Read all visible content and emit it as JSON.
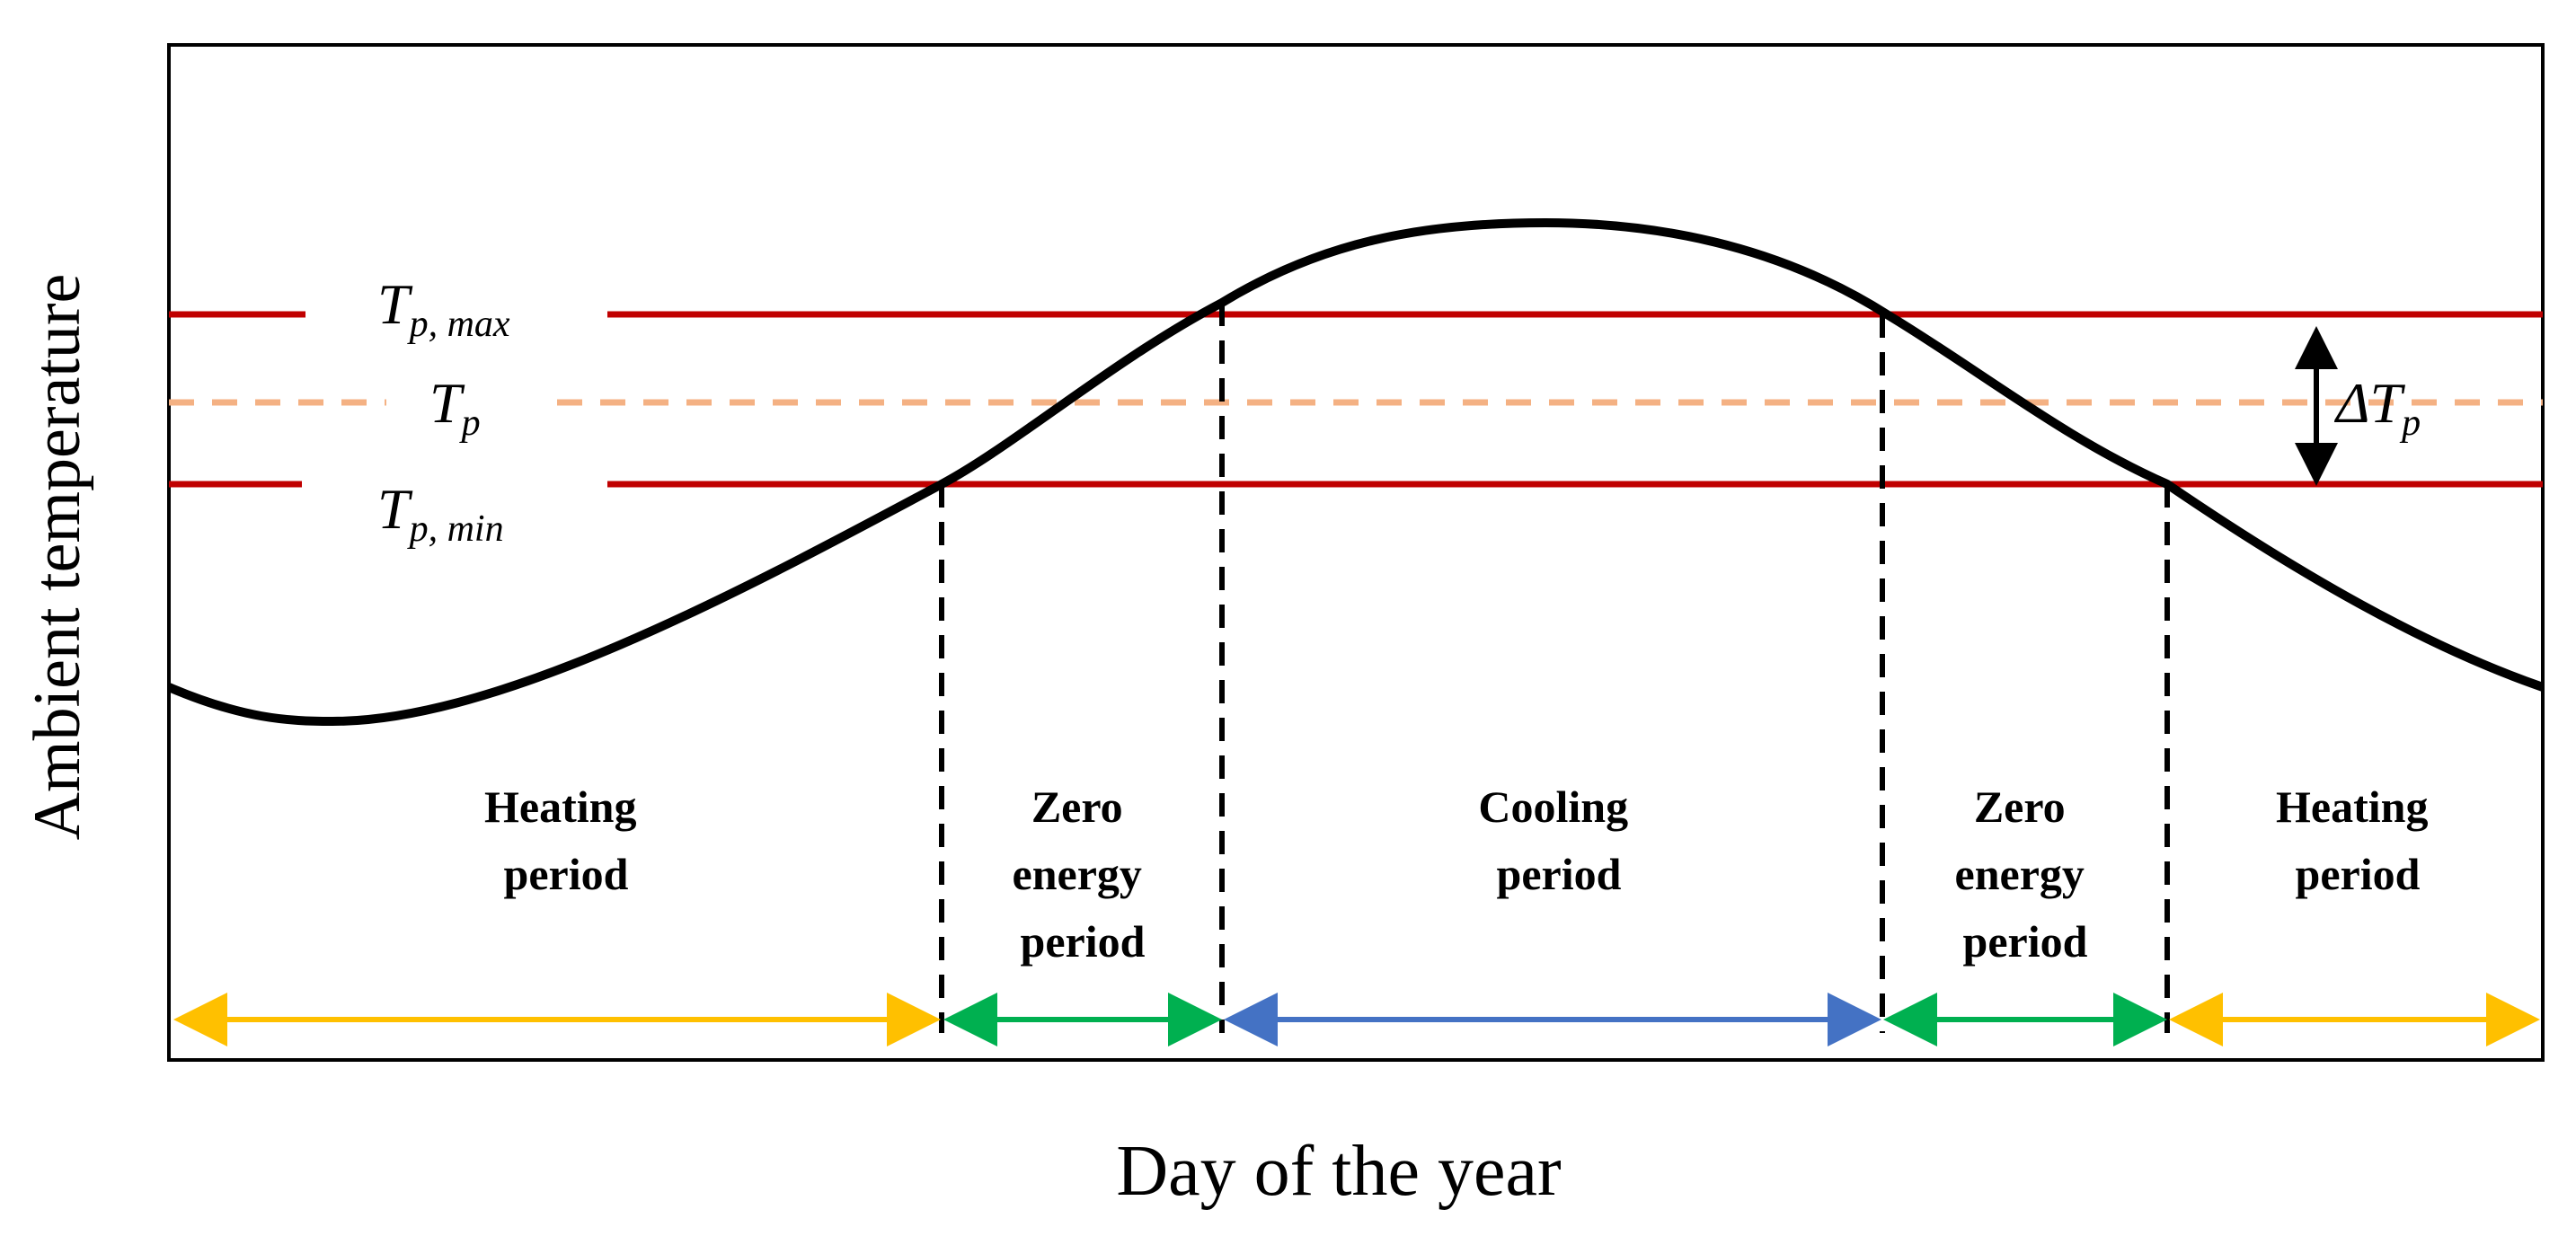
{
  "axes": {
    "y_label": "Ambient temperature",
    "x_label": "Day of the year"
  },
  "thresholds": {
    "max": {
      "symbol": "T",
      "sub": "p, max",
      "color": "#c00000"
    },
    "mean": {
      "symbol": "T",
      "sub": "p",
      "color": "#f4b183"
    },
    "min": {
      "symbol": "T",
      "sub": "p, min",
      "color": "#c00000"
    },
    "delta": {
      "symbol": "ΔT",
      "sub": "p"
    }
  },
  "periods": [
    {
      "id": "heating-1",
      "lines": [
        "Heating",
        "period"
      ],
      "color": "#ffc000"
    },
    {
      "id": "zero-1",
      "lines": [
        "Zero",
        "energy",
        "period"
      ],
      "color": "#00b050"
    },
    {
      "id": "cooling",
      "lines": [
        "Cooling",
        "period"
      ],
      "color": "#4472c4"
    },
    {
      "id": "zero-2",
      "lines": [
        "Zero",
        "energy",
        "period"
      ],
      "color": "#00b050"
    },
    {
      "id": "heating-2",
      "lines": [
        "Heating",
        "period"
      ],
      "color": "#ffc000"
    }
  ],
  "colors": {
    "curve": "#000000",
    "frame": "#000000"
  }
}
